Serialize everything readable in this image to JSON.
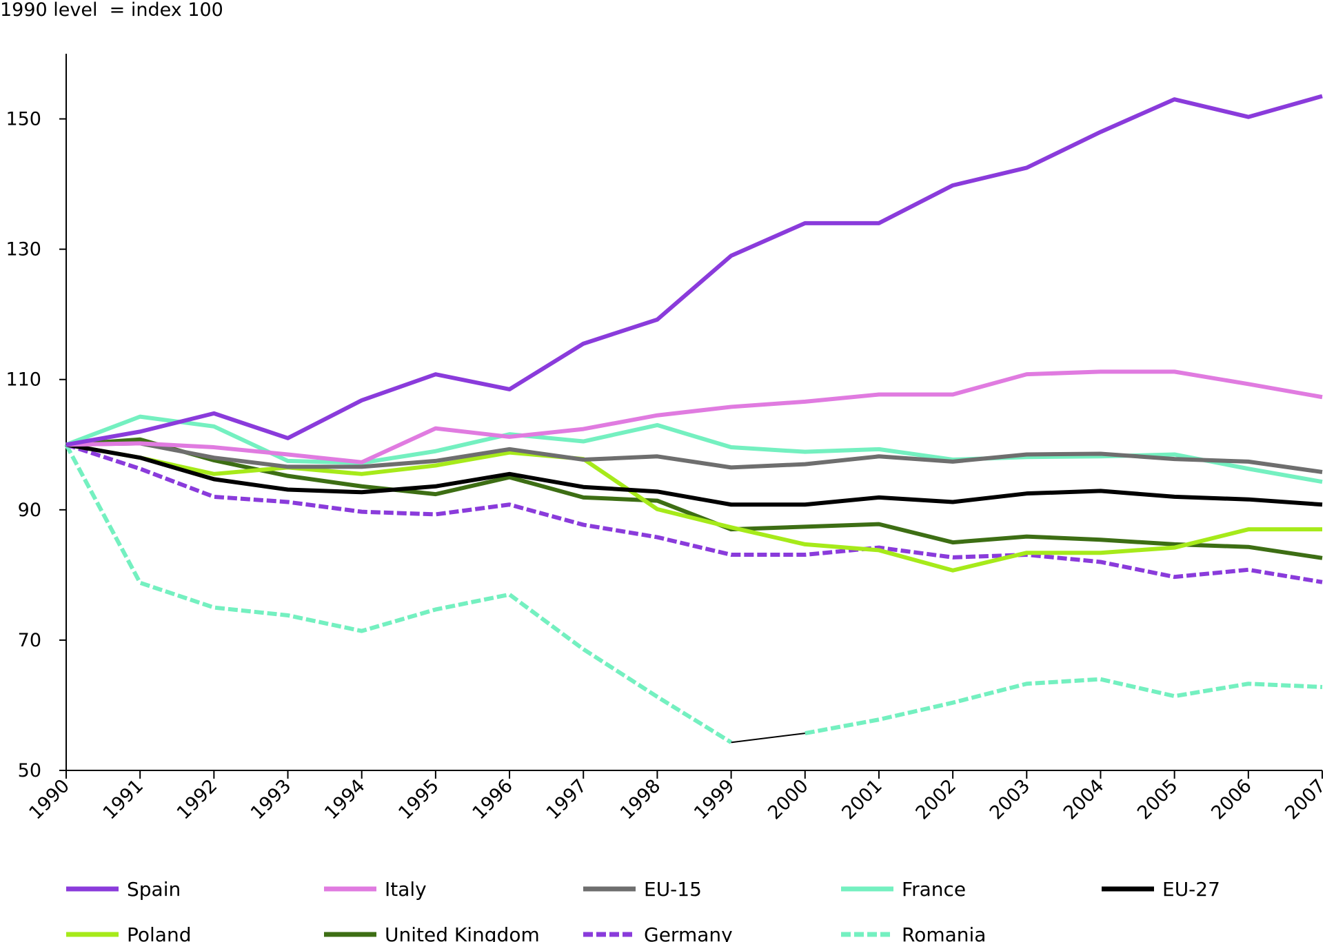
{
  "chart_data": {
    "type": "line",
    "title": "",
    "ylabel": "1990 level  = index 100",
    "xlabel": "",
    "ylim": [
      50,
      160
    ],
    "y_ticks": [
      "150",
      "130",
      "110",
      "90",
      "70",
      "50"
    ],
    "y_tick_values": [
      150,
      130,
      110,
      90,
      70,
      50
    ],
    "x": [
      "1990",
      "1991",
      "1992",
      "1993",
      "1994",
      "1995",
      "1996",
      "1997",
      "1998",
      "1999",
      "2000",
      "2001",
      "2002",
      "2003",
      "2004",
      "2005",
      "2006",
      "2007"
    ],
    "grid": false,
    "legend_position": "bottom",
    "series": [
      {
        "name": "Spain",
        "color": "#8a3bdb",
        "dashed": false,
        "values": [
          100,
          102,
          104.8,
          101,
          106.8,
          110.8,
          108.5,
          115.5,
          119.2,
          129,
          134,
          134,
          139.8,
          142.5,
          148,
          153,
          150.3,
          153.5
        ]
      },
      {
        "name": "Italy",
        "color": "#e07be0",
        "dashed": false,
        "values": [
          100,
          100.2,
          99.6,
          98.5,
          97.3,
          102.5,
          101.2,
          102.4,
          104.5,
          105.8,
          106.6,
          107.7,
          107.7,
          110.8,
          111.2,
          111.2,
          109.3,
          107.3
        ]
      },
      {
        "name": "EU-15",
        "color": "#6e6e6e",
        "dashed": false,
        "values": [
          100,
          100.2,
          98,
          96.6,
          96.6,
          97.5,
          99.3,
          97.7,
          98.2,
          96.5,
          97,
          98.2,
          97.4,
          98.5,
          98.6,
          97.8,
          97.4,
          95.8
        ]
      },
      {
        "name": "France",
        "color": "#74f0c0",
        "dashed": false,
        "values": [
          100,
          104.3,
          102.8,
          97.5,
          97.2,
          99,
          101.6,
          100.5,
          103,
          99.6,
          98.9,
          99.3,
          97.7,
          98.1,
          98.2,
          98.5,
          96.3,
          94.3
        ]
      },
      {
        "name": "EU-27",
        "color": "#000000",
        "dashed": false,
        "values": [
          100,
          98,
          94.7,
          93.1,
          92.7,
          93.6,
          95.5,
          93.5,
          92.8,
          90.8,
          90.8,
          91.9,
          91.2,
          92.5,
          92.9,
          92,
          91.6,
          90.8
        ]
      },
      {
        "name": "Poland",
        "color": "#a6ea1a",
        "dashed": false,
        "values": [
          100,
          98,
          95.5,
          96.5,
          95.5,
          96.8,
          98.8,
          97.8,
          90.1,
          87.3,
          84.7,
          83.8,
          80.7,
          83.4,
          83.4,
          84.2,
          87,
          87
        ]
      },
      {
        "name": "United Kingdom",
        "color": "#3d6e14",
        "dashed": false,
        "values": [
          100,
          100.8,
          97.6,
          95.2,
          93.6,
          92.4,
          95,
          91.9,
          91.4,
          87,
          87.4,
          87.8,
          85,
          85.9,
          85.4,
          84.7,
          84.3,
          82.6
        ]
      },
      {
        "name": "Germany",
        "color": "#8a3bdb",
        "dashed": true,
        "values": [
          100,
          96.3,
          92,
          91.2,
          89.7,
          89.3,
          90.8,
          87.7,
          85.8,
          83.1,
          83.1,
          84.2,
          82.7,
          83.1,
          82,
          79.7,
          80.8,
          78.9
        ]
      },
      {
        "name": "Romania",
        "color": "#74f0c0",
        "dashed": true,
        "values": [
          100,
          78.8,
          75,
          73.8,
          71.4,
          74.7,
          77,
          68.6,
          61.3,
          54.3,
          55.7,
          57.8,
          60.4,
          63.3,
          64,
          61.4,
          63.3,
          62.8
        ]
      }
    ],
    "connector": {
      "color": "#000000",
      "from": [
        "1999",
        54.3
      ],
      "to": [
        "2000",
        55.7
      ]
    }
  }
}
